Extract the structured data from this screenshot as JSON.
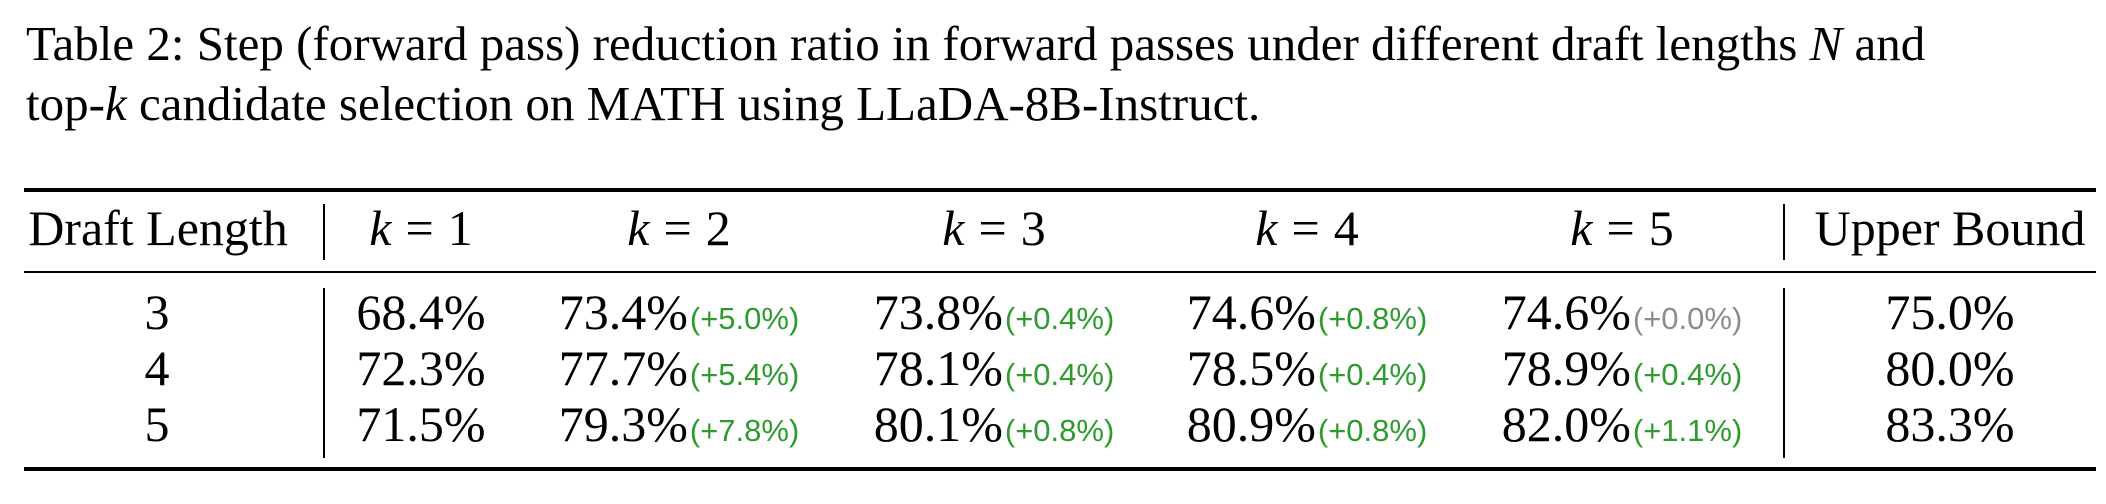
{
  "caption": {
    "line1_prefix": "Table 2: Step (forward pass) reduction ratio in forward passes under different draft lengths ",
    "line1_var": "N",
    "line1_suffix": " and",
    "line2_prefix": "top-",
    "line2_var": "k",
    "line2_suffix": " candidate selection on MATH using LLaDA-8B-Instruct."
  },
  "table": {
    "header": {
      "draft_length": "Draft Length",
      "k_var": "k",
      "k_eq": "=",
      "k_values": [
        "1",
        "2",
        "3",
        "4",
        "5"
      ],
      "upper_bound": "Upper Bound"
    },
    "rows": [
      {
        "draft_length": "3",
        "cells": [
          {
            "value": "68.4%",
            "delta": ""
          },
          {
            "value": "73.4%",
            "delta": "(+5.0%)"
          },
          {
            "value": "73.8%",
            "delta": "(+0.4%)"
          },
          {
            "value": "74.6%",
            "delta": "(+0.8%)"
          },
          {
            "value": "74.6%",
            "delta": "(+0.0%)"
          }
        ],
        "upper_bound": "75.0%"
      },
      {
        "draft_length": "4",
        "cells": [
          {
            "value": "72.3%",
            "delta": ""
          },
          {
            "value": "77.7%",
            "delta": "(+5.4%)"
          },
          {
            "value": "78.1%",
            "delta": "(+0.4%)"
          },
          {
            "value": "78.5%",
            "delta": "(+0.4%)"
          },
          {
            "value": "78.9%",
            "delta": "(+0.4%)"
          }
        ],
        "upper_bound": "80.0%"
      },
      {
        "draft_length": "5",
        "cells": [
          {
            "value": "71.5%",
            "delta": ""
          },
          {
            "value": "79.3%",
            "delta": "(+7.8%)"
          },
          {
            "value": "80.1%",
            "delta": "(+0.8%)"
          },
          {
            "value": "80.9%",
            "delta": "(+0.8%)"
          },
          {
            "value": "82.0%",
            "delta": "(+1.1%)"
          }
        ],
        "upper_bound": "83.3%"
      }
    ]
  },
  "colors": {
    "delta_positive": "#2e9b2e",
    "delta_zero": "#8c8c8c"
  }
}
